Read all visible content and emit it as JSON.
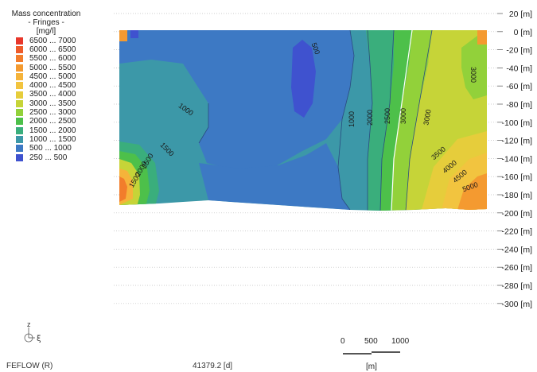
{
  "legend": {
    "title": "Mass concentration",
    "subtitle": "- Fringes -",
    "unit": "[mg/l]",
    "items": [
      {
        "label": "6500 ... 7000",
        "color": "#e8372b"
      },
      {
        "label": "6000 ... 6500",
        "color": "#ee5b2a"
      },
      {
        "label": "5500 ... 6000",
        "color": "#f27d2b"
      },
      {
        "label": "5000 ... 5500",
        "color": "#f49a30"
      },
      {
        "label": "4500 ... 5000",
        "color": "#f5b33a"
      },
      {
        "label": "4000 ... 4500",
        "color": "#f2c43f"
      },
      {
        "label": "3500 ... 4000",
        "color": "#e6cd3b"
      },
      {
        "label": "3000 ... 3500",
        "color": "#c6d438"
      },
      {
        "label": "2500 ... 3000",
        "color": "#92d13a"
      },
      {
        "label": "2000 ... 2500",
        "color": "#4dc04a"
      },
      {
        "label": "1500 ... 2000",
        "color": "#3aae7c"
      },
      {
        "label": "1000 ... 1500",
        "color": "#3c98a8"
      },
      {
        "label": "500 ... 1000",
        "color": "#3d79c4"
      },
      {
        "label": "250 ... 500",
        "color": "#3f52cf"
      }
    ]
  },
  "chart_data": {
    "type": "heatmap",
    "ylabel_unit": "[m]",
    "y_ticks": [
      20,
      0,
      -20,
      -40,
      -60,
      -80,
      -100,
      -120,
      -140,
      -160,
      -180,
      -200,
      -220,
      -240,
      -260,
      -280,
      -300
    ],
    "y_tick_labels": [
      "20 [m]",
      "0 [m]",
      "-20 [m]",
      "-40 [m]",
      "-60 [m]",
      "-80 [m]",
      "-100 [m]",
      "-120 [m]",
      "-140 [m]",
      "-160 [m]",
      "-180 [m]",
      "-200 [m]",
      "-220 [m]",
      "-240 [m]",
      "-260 [m]",
      "-280 [m]",
      "-300 [m]"
    ],
    "ylim": [
      -300,
      20
    ],
    "grid": true,
    "contour_labels": [
      "500",
      "1000",
      "1000",
      "1500",
      "2000",
      "2500",
      "3000",
      "3000",
      "1500",
      "2000",
      "2500",
      "3000",
      "3500",
      "4000",
      "4500",
      "5000"
    ]
  },
  "axis_icon": {
    "z": "z",
    "xi": "ξ"
  },
  "footer": {
    "software": "FEFLOW (R)",
    "time": "41379.2 [d]",
    "scale_labels": [
      "0",
      "500",
      "1000"
    ],
    "scale_unit": "[m]"
  }
}
